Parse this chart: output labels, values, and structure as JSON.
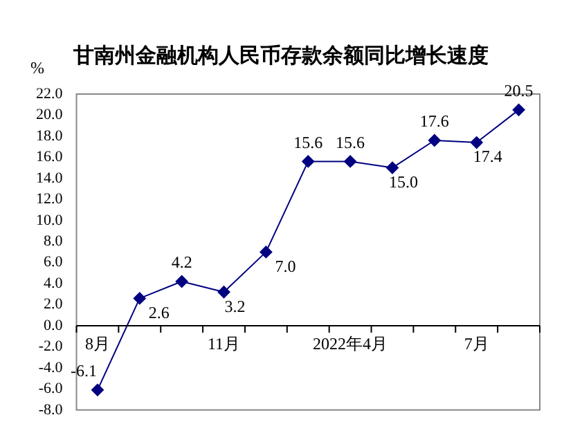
{
  "chart_data": {
    "type": "line",
    "title": "甘南州金融机构人民币存款余额同比增长速度",
    "ylabel": "%",
    "categories": [
      "8月",
      null,
      null,
      "11月",
      null,
      null,
      "2022年4月",
      null,
      null,
      "7月",
      null
    ],
    "series": [
      {
        "color": "#000080",
        "values": [
          -6.1,
          2.6,
          4.2,
          3.2,
          7.0,
          15.6,
          15.6,
          15.0,
          17.6,
          17.4,
          20.5
        ],
        "value_labels": [
          "-6.1",
          "2.6",
          "4.2",
          "3.2",
          "7.0",
          "15.6",
          "15.6",
          "15.0",
          "17.6",
          "17.4",
          "20.5"
        ]
      }
    ],
    "ylim": [
      -8,
      22
    ],
    "yticks": [
      {
        "value": -8,
        "label": "-8.0"
      },
      {
        "value": -6,
        "label": "-6.0"
      },
      {
        "value": -4,
        "label": "-4.0"
      },
      {
        "value": -2,
        "label": "-2.0"
      },
      {
        "value": 0,
        "label": "0.0"
      },
      {
        "value": 2,
        "label": "2.0"
      },
      {
        "value": 4,
        "label": "4.0"
      },
      {
        "value": 6,
        "label": "6.0"
      },
      {
        "value": 8,
        "label": "8.0"
      },
      {
        "value": 10,
        "label": "10.0"
      },
      {
        "value": 12,
        "label": "12.0"
      },
      {
        "value": 14,
        "label": "14.0"
      },
      {
        "value": 16,
        "label": "16.0"
      },
      {
        "value": 18,
        "label": "18.0"
      },
      {
        "value": 20,
        "label": "20.0"
      },
      {
        "value": 22,
        "label": "22.0"
      }
    ],
    "marker": "diamond",
    "line_style": "solid",
    "grid": false,
    "legend": false
  }
}
